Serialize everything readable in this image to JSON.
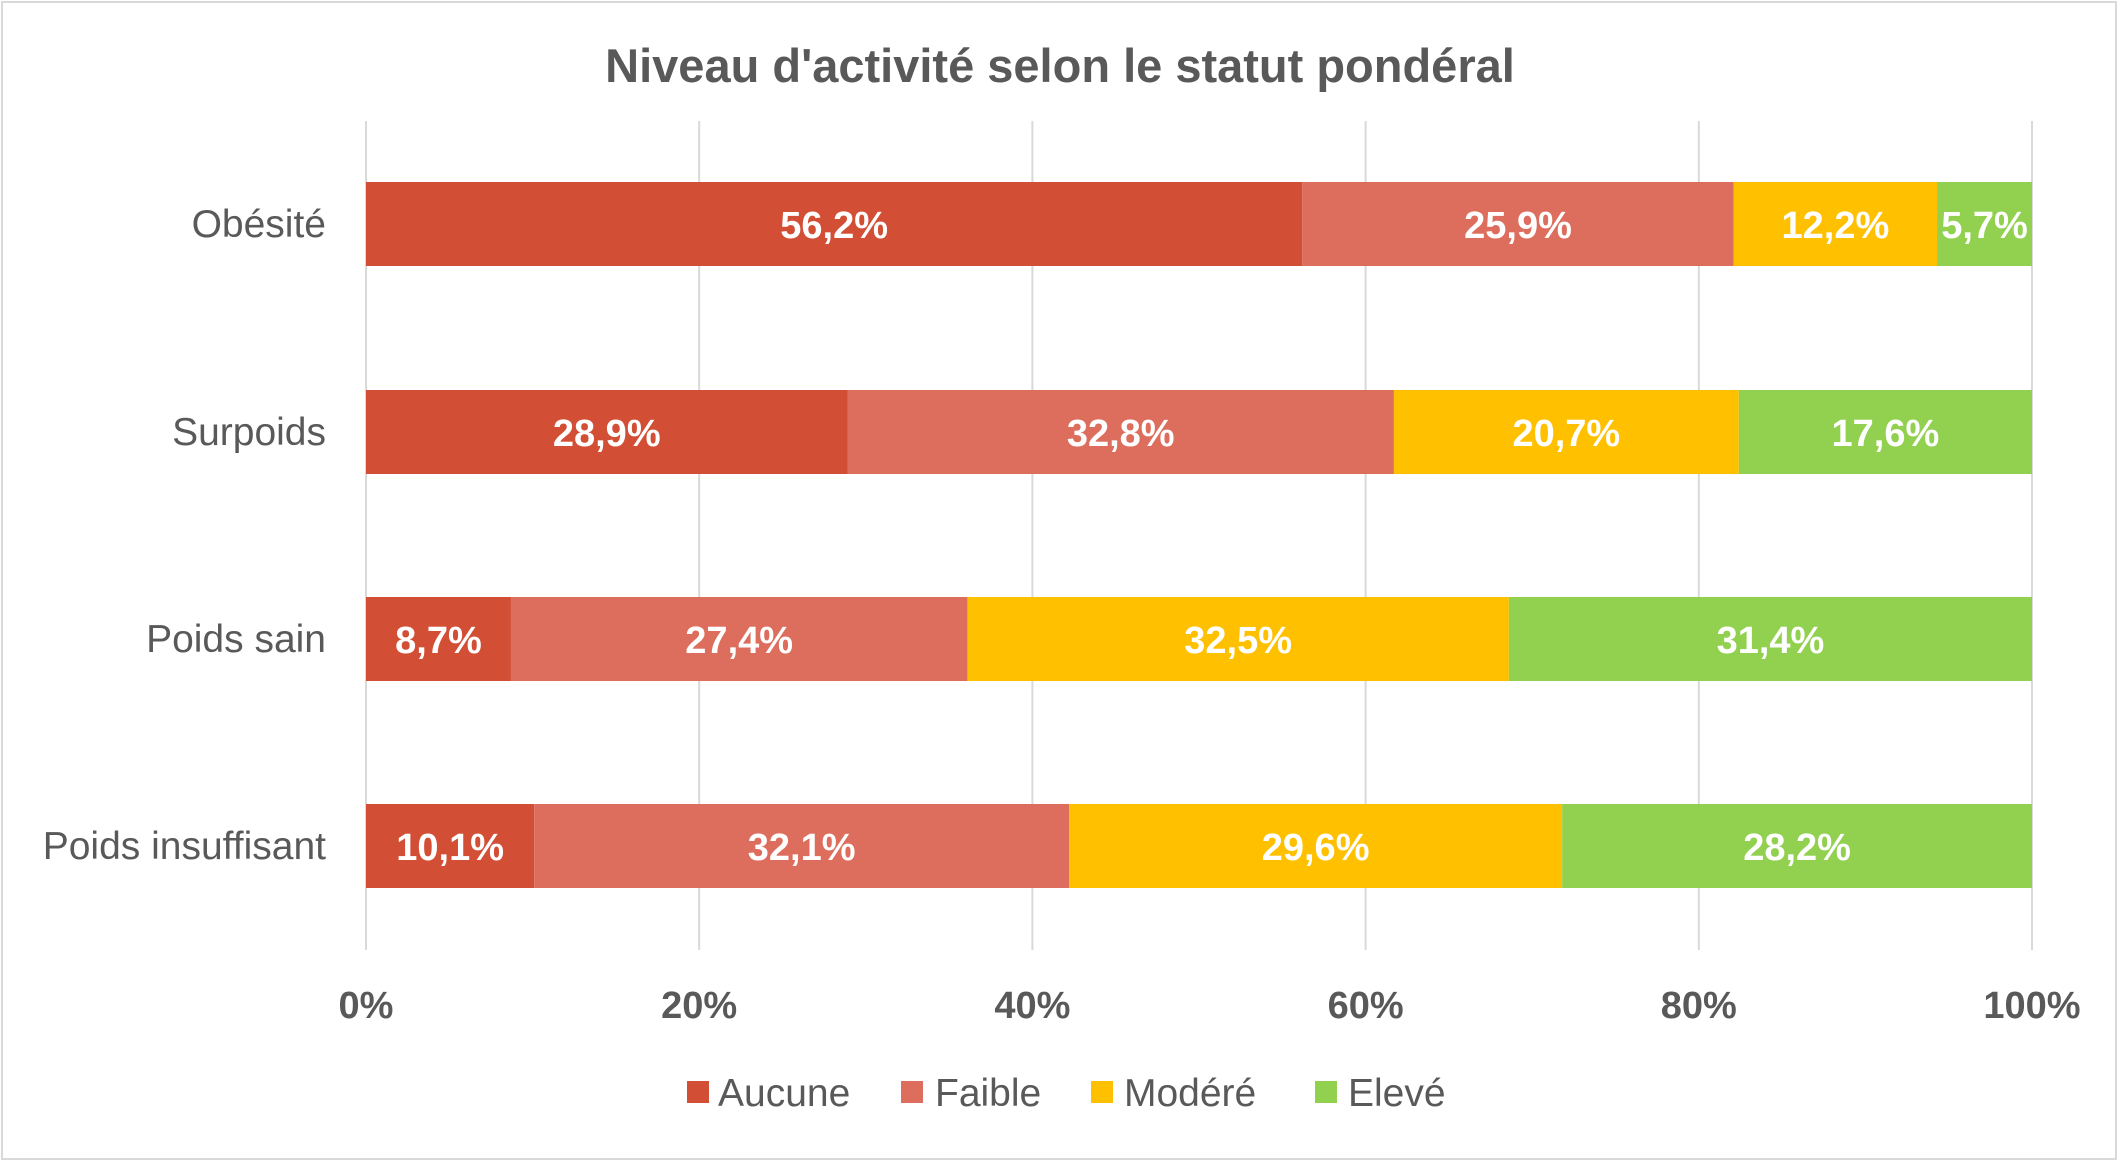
{
  "chart_data": {
    "type": "bar",
    "orientation": "horizontal",
    "stacked": "percent",
    "title": "Niveau d'activité selon le statut pondéral",
    "categories": [
      "Obésité",
      "Surpoids",
      "Poids sain",
      "Poids insuffisant"
    ],
    "series": [
      {
        "name": "Aucune",
        "color": "#d24e35",
        "values": [
          56.2,
          28.9,
          8.7,
          10.1
        ],
        "labels": [
          "56,2%",
          "28,9%",
          "8,7%",
          "10,1%"
        ]
      },
      {
        "name": "Faible",
        "color": "#dd6e5d",
        "values": [
          25.9,
          32.8,
          27.4,
          32.1
        ],
        "labels": [
          "25,9%",
          "32,8%",
          "27,4%",
          "32,1%"
        ]
      },
      {
        "name": "Modéré",
        "color": "#ffc000",
        "values": [
          12.2,
          20.7,
          32.5,
          29.6
        ],
        "labels": [
          "12,2%",
          "20,7%",
          "32,5%",
          "29,6%"
        ]
      },
      {
        "name": "Elevé",
        "color": "#92d050",
        "values": [
          5.7,
          17.6,
          31.4,
          28.2
        ],
        "labels": [
          "5,7%",
          "17,6%",
          "31,4%",
          "28,2%"
        ]
      }
    ],
    "xlim": [
      0,
      100
    ],
    "xticks": [
      "0%",
      "20%",
      "40%",
      "60%",
      "80%",
      "100%"
    ],
    "grid": true,
    "legend_position": "bottom"
  }
}
